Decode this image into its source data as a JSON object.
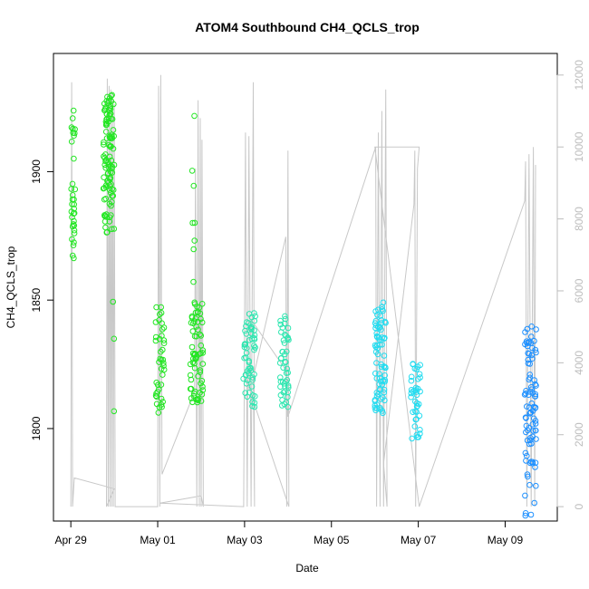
{
  "chart_data": {
    "type": "scatter",
    "title": "ATOM4 Southbound CH4_QCLS_trop",
    "xlabel": "Date",
    "ylabel": "CH4_QCLS_trop",
    "x_tick_labels": [
      "Apr 29",
      "May 01",
      "May 03",
      "May 05",
      "May 07",
      "May 09"
    ],
    "x_tick_values": [
      0,
      2,
      4,
      6,
      8,
      10
    ],
    "xlim": [
      -0.4,
      11.2
    ],
    "ylim": [
      1764,
      1946
    ],
    "y_ticks": [
      1800,
      1850,
      1900
    ],
    "y2_label": "",
    "y2lim": [
      -400,
      12600
    ],
    "y2_ticks": [
      0,
      2000,
      4000,
      6000,
      8000,
      10000,
      12000
    ],
    "grid": false,
    "legend": "none",
    "colors": {
      "altitude_line": "#c8c8c8",
      "early_points": "#22e622",
      "mid_points": "#2ee6b0",
      "late_points": "#22dcf0",
      "end_points": "#1e90ff",
      "right_axis": "#bdbdbd"
    },
    "series": [
      {
        "role": "scatter",
        "segments": [
          {
            "x0": 0.0,
            "x1": 0.1,
            "ylo": 1866,
            "yhi": 1924,
            "n": 34,
            "color": "#22e622"
          },
          {
            "x0": 0.75,
            "x1": 1.0,
            "ylo": 1876,
            "yhi": 1930,
            "n": 110,
            "color": "#22e622"
          },
          {
            "x0": 0.97,
            "x1": 1.0,
            "ylo": 1775,
            "yhi": 1850,
            "n": 3,
            "color": "#22e622"
          },
          {
            "x0": 1.95,
            "x1": 2.15,
            "ylo": 1806,
            "yhi": 1848,
            "n": 42,
            "color": "#22e622"
          },
          {
            "x0": 2.75,
            "x1": 3.05,
            "ylo": 1810,
            "yhi": 1850,
            "n": 70,
            "color": "#22e622"
          },
          {
            "x0": 2.78,
            "x1": 2.86,
            "ylo": 1855,
            "yhi": 1935,
            "n": 8,
            "color": "#22e622"
          },
          {
            "x0": 3.97,
            "x1": 4.25,
            "ylo": 1808,
            "yhi": 1845,
            "n": 60,
            "color": "#2ee6b0"
          },
          {
            "x0": 4.82,
            "x1": 5.02,
            "ylo": 1808,
            "yhi": 1845,
            "n": 48,
            "color": "#2ee6b0"
          },
          {
            "x0": 7.0,
            "x1": 7.25,
            "ylo": 1806,
            "yhi": 1851,
            "n": 75,
            "color": "#22dcf0"
          },
          {
            "x0": 7.83,
            "x1": 8.05,
            "ylo": 1795,
            "yhi": 1826,
            "n": 40,
            "color": "#22dcf0"
          },
          {
            "x0": 10.45,
            "x1": 10.72,
            "ylo": 1782,
            "yhi": 1842,
            "n": 80,
            "color": "#1e90ff"
          },
          {
            "x0": 10.45,
            "x1": 10.72,
            "ylo": 1765,
            "yhi": 1782,
            "n": 8,
            "color": "#1e90ff"
          }
        ]
      },
      {
        "role": "altitude",
        "points": [
          [
            0.0,
            0
          ],
          [
            0.02,
            11800
          ],
          [
            0.04,
            0
          ],
          [
            0.08,
            800
          ],
          [
            1.0,
            500
          ],
          [
            0.82,
            0
          ],
          [
            0.84,
            11900
          ],
          [
            0.86,
            0
          ],
          [
            0.88,
            11700
          ],
          [
            0.9,
            0
          ],
          [
            0.92,
            11600
          ],
          [
            0.94,
            0
          ],
          [
            0.96,
            11500
          ],
          [
            0.98,
            0
          ],
          [
            1.0,
            11200
          ],
          [
            1.02,
            0
          ],
          [
            2.0,
            0
          ],
          [
            2.02,
            11700
          ],
          [
            2.05,
            0
          ],
          [
            2.07,
            12000
          ],
          [
            2.1,
            900
          ],
          [
            2.85,
            3200
          ],
          [
            2.87,
            9400
          ],
          [
            2.9,
            0
          ],
          [
            2.93,
            11300
          ],
          [
            2.96,
            0
          ],
          [
            2.98,
            10800
          ],
          [
            3.0,
            0
          ],
          [
            3.02,
            10200
          ],
          [
            3.05,
            0
          ],
          [
            3.0,
            300
          ],
          [
            2.05,
            100
          ],
          [
            3.98,
            0
          ],
          [
            4.02,
            10400
          ],
          [
            4.06,
            0
          ],
          [
            4.1,
            10300
          ],
          [
            4.15,
            0
          ],
          [
            4.2,
            11800
          ],
          [
            4.23,
            0
          ],
          [
            4.2,
            3600
          ],
          [
            4.95,
            7500
          ],
          [
            4.97,
            0
          ],
          [
            5.0,
            9900
          ],
          [
            5.02,
            0
          ],
          [
            4.1,
            3300
          ],
          [
            4.15,
            5200
          ],
          [
            4.95,
            3800
          ],
          [
            5.0,
            2500
          ],
          [
            7.02,
            10000
          ],
          [
            7.04,
            0
          ],
          [
            7.08,
            10400
          ],
          [
            7.12,
            0
          ],
          [
            7.16,
            11000
          ],
          [
            7.2,
            0
          ],
          [
            7.25,
            11600
          ],
          [
            7.28,
            0
          ],
          [
            7.2,
            1200
          ],
          [
            7.9,
            8400
          ],
          [
            7.92,
            9900
          ],
          [
            7.94,
            0
          ],
          [
            7.98,
            9400
          ],
          [
            8.02,
            10000
          ],
          [
            7.0,
            10000
          ],
          [
            8.02,
            0
          ],
          [
            10.45,
            8500
          ],
          [
            10.47,
            9600
          ],
          [
            10.5,
            0
          ],
          [
            10.55,
            9800
          ],
          [
            10.6,
            0
          ],
          [
            10.65,
            10000
          ],
          [
            10.68,
            0
          ],
          [
            10.7,
            9500
          ]
        ]
      }
    ]
  }
}
